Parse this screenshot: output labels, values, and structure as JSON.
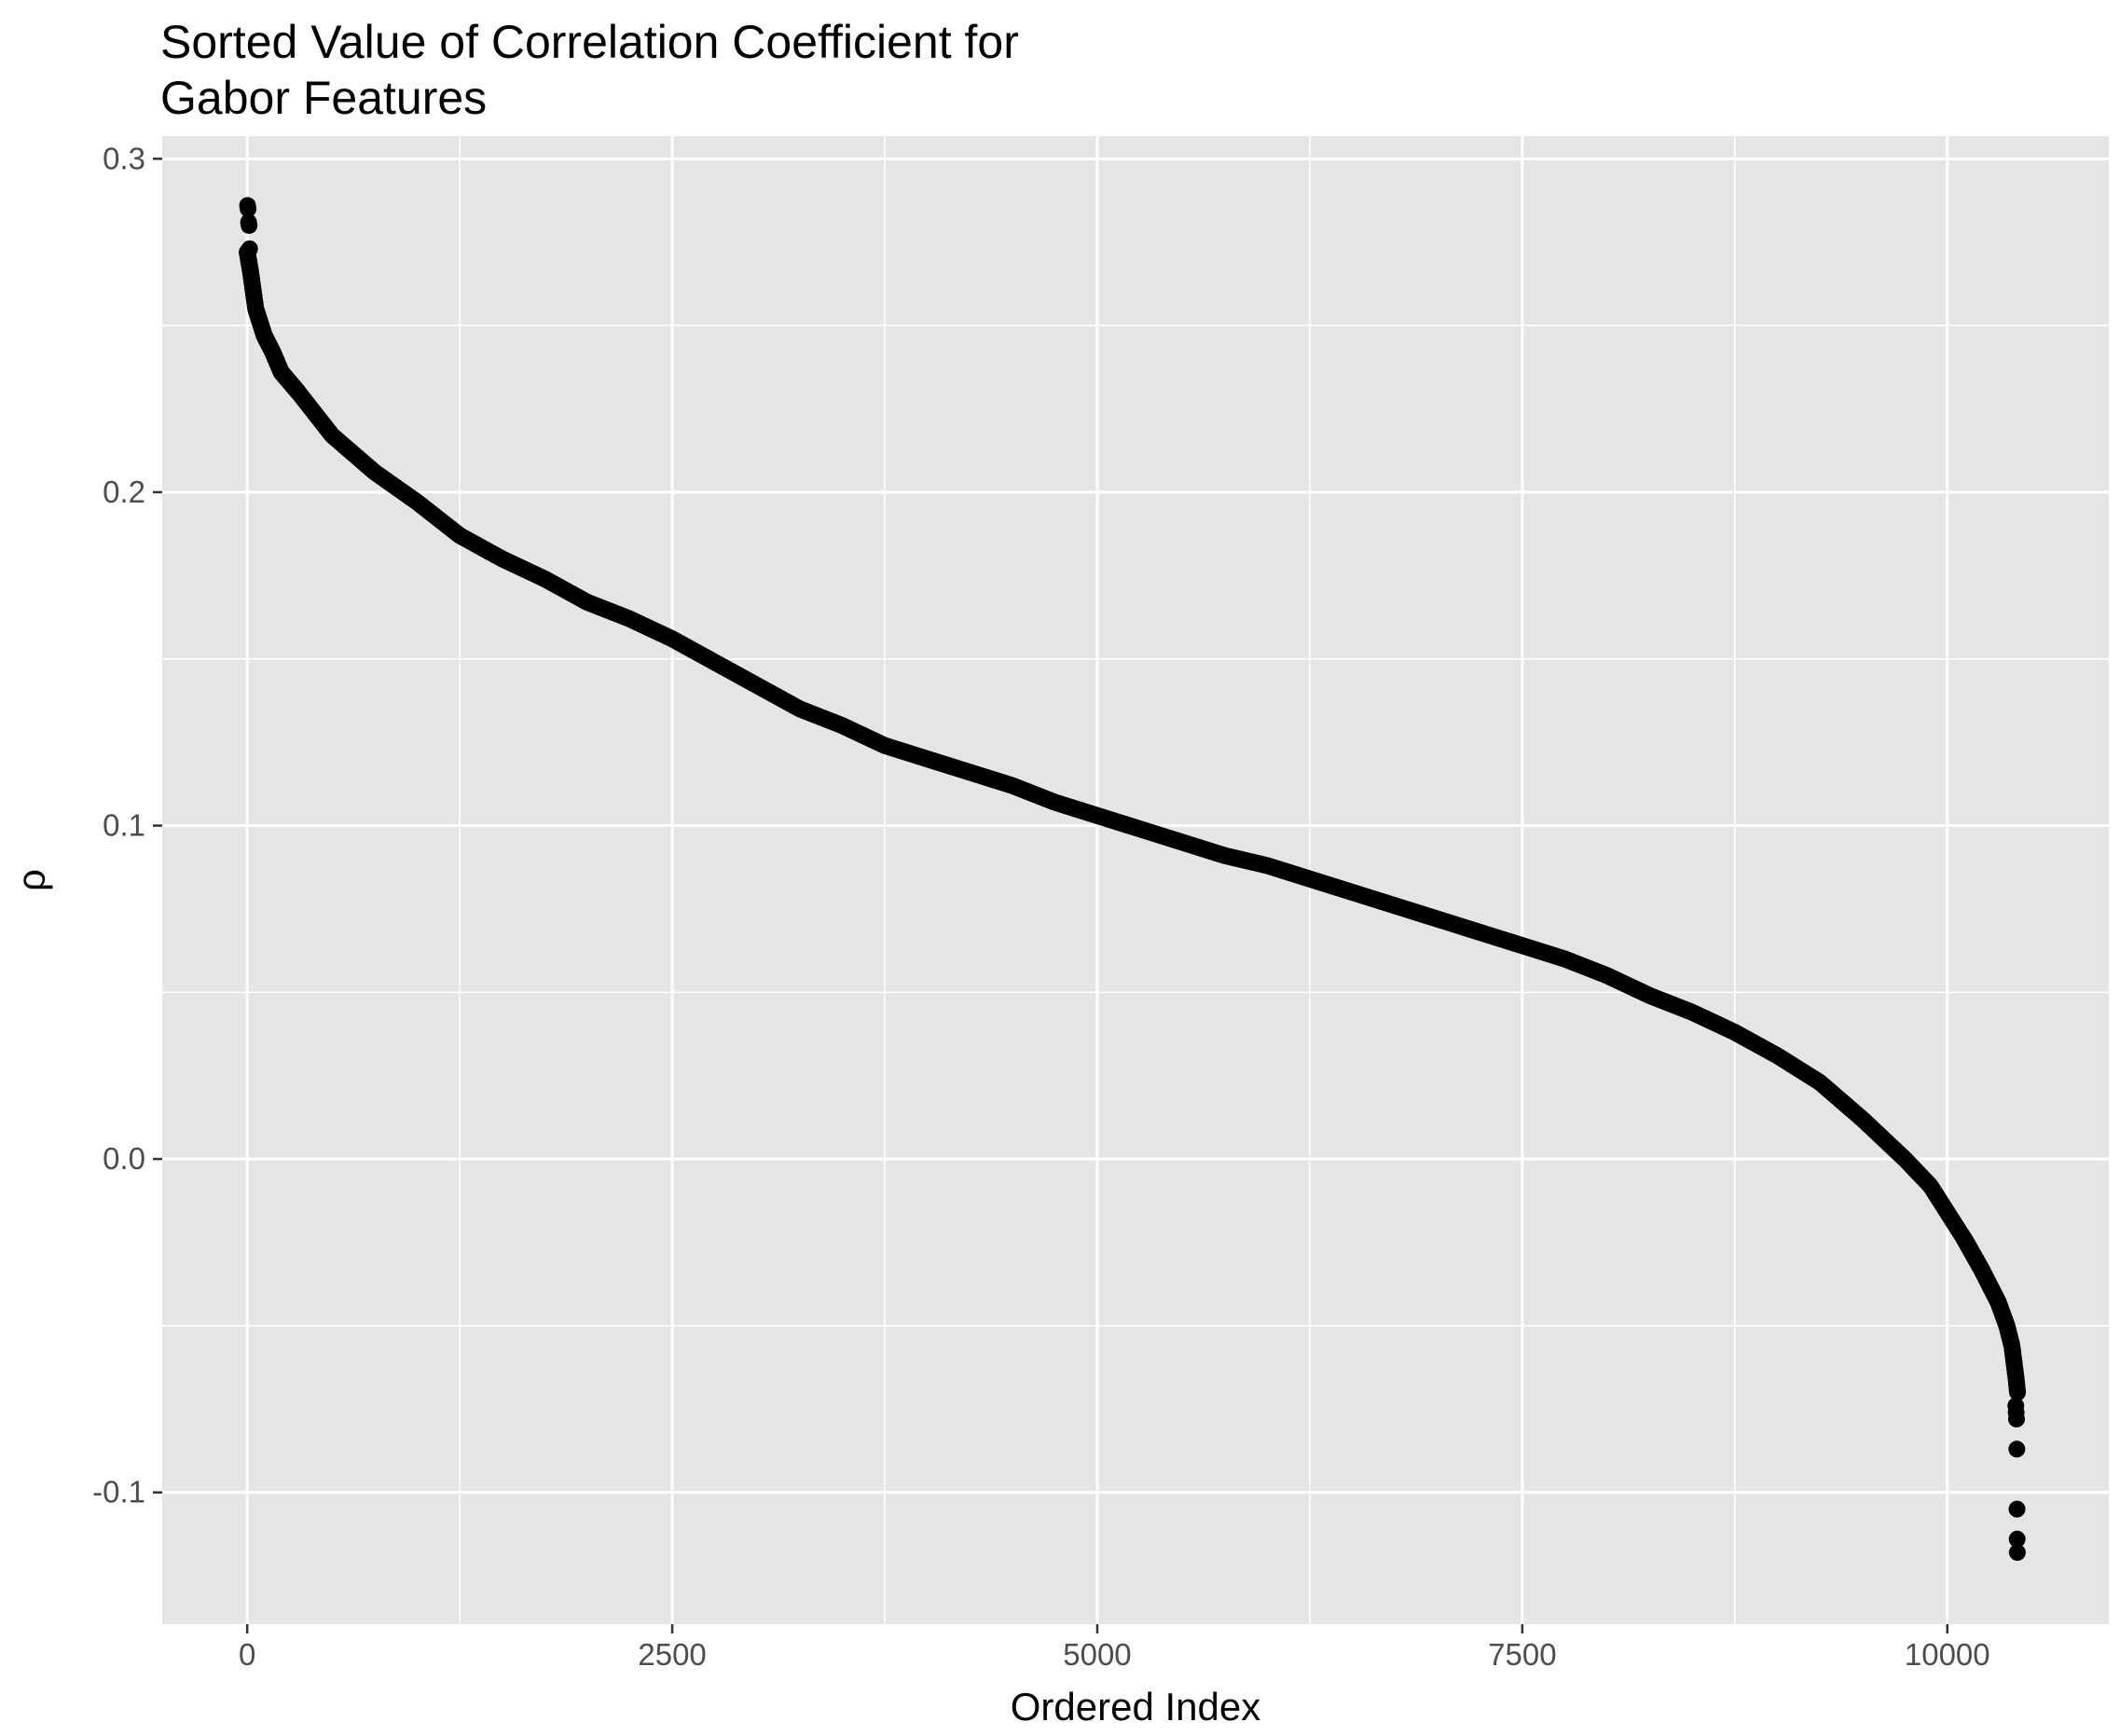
{
  "chart_data": {
    "type": "scatter",
    "title_lines": [
      "Sorted Value of Correlation Coefficient for",
      "Gabor Features"
    ],
    "xlabel": "Ordered Index",
    "ylabel": "ρ",
    "xlim": [
      -500,
      10950
    ],
    "ylim": [
      -0.1395,
      0.3068
    ],
    "x_ticks": [
      0,
      2500,
      5000,
      7500,
      10000
    ],
    "x_tick_labels": [
      "0",
      "2500",
      "5000",
      "7500",
      "10000"
    ],
    "y_ticks": [
      -0.1,
      0.0,
      0.1,
      0.2,
      0.3
    ],
    "y_tick_labels": [
      "-0.1",
      "0.0",
      "0.1",
      "0.2",
      "0.3"
    ],
    "grid": true,
    "n_points": 10413,
    "curve": {
      "x": [
        0,
        20,
        50,
        100,
        150,
        200,
        300,
        500,
        750,
        1000,
        1250,
        1500,
        1750,
        2000,
        2250,
        2500,
        2750,
        3000,
        3250,
        3500,
        3750,
        4000,
        4250,
        4500,
        4750,
        5000,
        5250,
        5500,
        5750,
        6000,
        6250,
        6500,
        6750,
        7000,
        7250,
        7500,
        7750,
        8000,
        8250,
        8500,
        8750,
        9000,
        9250,
        9500,
        9750,
        9900,
        10000,
        10100,
        10200,
        10300,
        10350,
        10380,
        10395,
        10405,
        10413
      ],
      "y": [
        0.272,
        0.266,
        0.255,
        0.247,
        0.242,
        0.236,
        0.23,
        0.217,
        0.206,
        0.197,
        0.187,
        0.18,
        0.174,
        0.167,
        0.162,
        0.156,
        0.149,
        0.142,
        0.135,
        0.13,
        0.124,
        0.12,
        0.116,
        0.112,
        0.107,
        0.103,
        0.099,
        0.095,
        0.091,
        0.088,
        0.084,
        0.08,
        0.076,
        0.072,
        0.068,
        0.064,
        0.06,
        0.055,
        0.049,
        0.044,
        0.038,
        0.031,
        0.023,
        0.012,
        0.0,
        -0.008,
        -0.016,
        -0.024,
        -0.033,
        -0.043,
        -0.05,
        -0.056,
        -0.062,
        -0.066,
        -0.07
      ]
    },
    "outliers": [
      {
        "x": 2,
        "y": 0.286
      },
      {
        "x": 5,
        "y": 0.285
      },
      {
        "x": 8,
        "y": 0.281
      },
      {
        "x": 11,
        "y": 0.28
      },
      {
        "x": 14,
        "y": 0.273
      },
      {
        "x": 10403,
        "y": -0.074
      },
      {
        "x": 10405,
        "y": -0.076
      },
      {
        "x": 10407,
        "y": -0.078
      },
      {
        "x": 10409,
        "y": -0.087
      },
      {
        "x": 10410,
        "y": -0.105
      },
      {
        "x": 10411,
        "y": -0.114
      },
      {
        "x": 10412,
        "y": -0.118
      }
    ],
    "colors": {
      "panel": "#e5e5e5",
      "grid": "#ffffff",
      "points": "#000000",
      "tick_text": "#4d4d4d",
      "axis_title": "#000000"
    }
  }
}
